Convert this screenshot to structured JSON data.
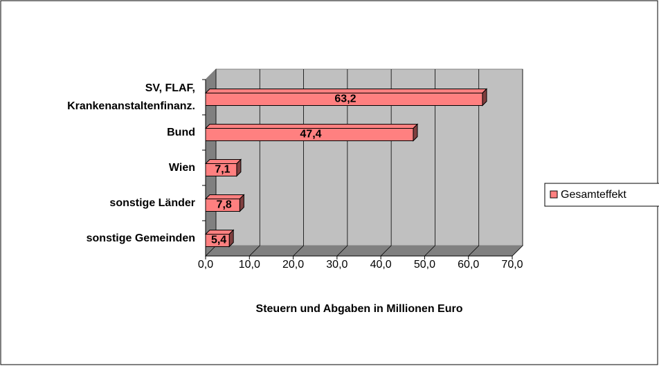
{
  "chart_data": {
    "type": "bar",
    "orientation": "horizontal",
    "categories": [
      "SV, FLAF,\nKrankenanstaltenfinanz.",
      "Bund",
      "Wien",
      "sonstige Länder",
      "sonstige Gemeinden"
    ],
    "series": [
      {
        "name": "Gesamteffekt",
        "color": "#ff8080",
        "values": [
          63.2,
          47.4,
          7.1,
          7.8,
          5.4
        ],
        "value_labels": [
          "63,2",
          "47,4",
          "7,1",
          "7,8",
          "5,4"
        ]
      }
    ],
    "xlabel": "Steuern und Abgaben in Millionen Euro",
    "xlim": [
      0,
      70
    ],
    "xticks": [
      {
        "value": 0,
        "label": "0,0"
      },
      {
        "value": 10,
        "label": "10,0"
      },
      {
        "value": 20,
        "label": "20,0"
      },
      {
        "value": 30,
        "label": "30,0"
      },
      {
        "value": 40,
        "label": "40,0"
      },
      {
        "value": 50,
        "label": "50,0"
      },
      {
        "value": 60,
        "label": "60,0"
      },
      {
        "value": 70,
        "label": "70,0"
      }
    ],
    "grid": true,
    "legend": "right"
  }
}
